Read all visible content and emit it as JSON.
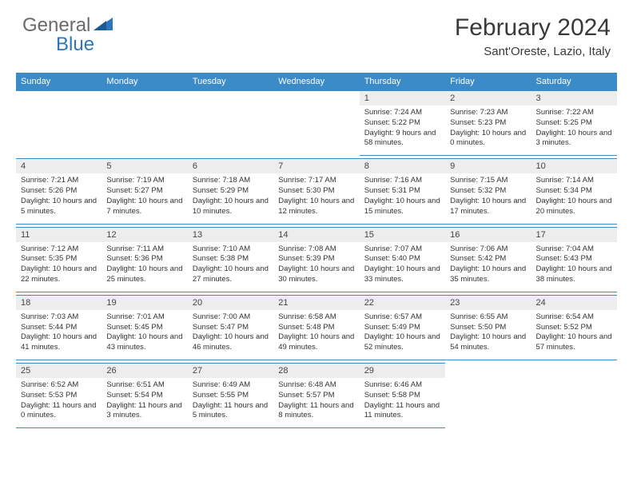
{
  "logo": {
    "text1": "General",
    "text2": "Blue"
  },
  "title": "February 2024",
  "location": "Sant'Oreste, Lazio, Italy",
  "colors": {
    "header_bg": "#3b8bc8",
    "header_text": "#ffffff",
    "daynum_bg": "#ededed",
    "border": "#3b8bc8",
    "logo_gray": "#6a6a6a",
    "logo_blue": "#2d76ba"
  },
  "weekdays": [
    "Sunday",
    "Monday",
    "Tuesday",
    "Wednesday",
    "Thursday",
    "Friday",
    "Saturday"
  ],
  "weeks": [
    [
      null,
      null,
      null,
      null,
      {
        "n": "1",
        "sunrise": "7:24 AM",
        "sunset": "5:22 PM",
        "daylight": "9 hours and 58 minutes."
      },
      {
        "n": "2",
        "sunrise": "7:23 AM",
        "sunset": "5:23 PM",
        "daylight": "10 hours and 0 minutes."
      },
      {
        "n": "3",
        "sunrise": "7:22 AM",
        "sunset": "5:25 PM",
        "daylight": "10 hours and 3 minutes."
      }
    ],
    [
      {
        "n": "4",
        "sunrise": "7:21 AM",
        "sunset": "5:26 PM",
        "daylight": "10 hours and 5 minutes."
      },
      {
        "n": "5",
        "sunrise": "7:19 AM",
        "sunset": "5:27 PM",
        "daylight": "10 hours and 7 minutes."
      },
      {
        "n": "6",
        "sunrise": "7:18 AM",
        "sunset": "5:29 PM",
        "daylight": "10 hours and 10 minutes."
      },
      {
        "n": "7",
        "sunrise": "7:17 AM",
        "sunset": "5:30 PM",
        "daylight": "10 hours and 12 minutes."
      },
      {
        "n": "8",
        "sunrise": "7:16 AM",
        "sunset": "5:31 PM",
        "daylight": "10 hours and 15 minutes."
      },
      {
        "n": "9",
        "sunrise": "7:15 AM",
        "sunset": "5:32 PM",
        "daylight": "10 hours and 17 minutes."
      },
      {
        "n": "10",
        "sunrise": "7:14 AM",
        "sunset": "5:34 PM",
        "daylight": "10 hours and 20 minutes."
      }
    ],
    [
      {
        "n": "11",
        "sunrise": "7:12 AM",
        "sunset": "5:35 PM",
        "daylight": "10 hours and 22 minutes."
      },
      {
        "n": "12",
        "sunrise": "7:11 AM",
        "sunset": "5:36 PM",
        "daylight": "10 hours and 25 minutes."
      },
      {
        "n": "13",
        "sunrise": "7:10 AM",
        "sunset": "5:38 PM",
        "daylight": "10 hours and 27 minutes."
      },
      {
        "n": "14",
        "sunrise": "7:08 AM",
        "sunset": "5:39 PM",
        "daylight": "10 hours and 30 minutes."
      },
      {
        "n": "15",
        "sunrise": "7:07 AM",
        "sunset": "5:40 PM",
        "daylight": "10 hours and 33 minutes."
      },
      {
        "n": "16",
        "sunrise": "7:06 AM",
        "sunset": "5:42 PM",
        "daylight": "10 hours and 35 minutes."
      },
      {
        "n": "17",
        "sunrise": "7:04 AM",
        "sunset": "5:43 PM",
        "daylight": "10 hours and 38 minutes."
      }
    ],
    [
      {
        "n": "18",
        "sunrise": "7:03 AM",
        "sunset": "5:44 PM",
        "daylight": "10 hours and 41 minutes."
      },
      {
        "n": "19",
        "sunrise": "7:01 AM",
        "sunset": "5:45 PM",
        "daylight": "10 hours and 43 minutes."
      },
      {
        "n": "20",
        "sunrise": "7:00 AM",
        "sunset": "5:47 PM",
        "daylight": "10 hours and 46 minutes."
      },
      {
        "n": "21",
        "sunrise": "6:58 AM",
        "sunset": "5:48 PM",
        "daylight": "10 hours and 49 minutes."
      },
      {
        "n": "22",
        "sunrise": "6:57 AM",
        "sunset": "5:49 PM",
        "daylight": "10 hours and 52 minutes."
      },
      {
        "n": "23",
        "sunrise": "6:55 AM",
        "sunset": "5:50 PM",
        "daylight": "10 hours and 54 minutes."
      },
      {
        "n": "24",
        "sunrise": "6:54 AM",
        "sunset": "5:52 PM",
        "daylight": "10 hours and 57 minutes."
      }
    ],
    [
      {
        "n": "25",
        "sunrise": "6:52 AM",
        "sunset": "5:53 PM",
        "daylight": "11 hours and 0 minutes."
      },
      {
        "n": "26",
        "sunrise": "6:51 AM",
        "sunset": "5:54 PM",
        "daylight": "11 hours and 3 minutes."
      },
      {
        "n": "27",
        "sunrise": "6:49 AM",
        "sunset": "5:55 PM",
        "daylight": "11 hours and 5 minutes."
      },
      {
        "n": "28",
        "sunrise": "6:48 AM",
        "sunset": "5:57 PM",
        "daylight": "11 hours and 8 minutes."
      },
      {
        "n": "29",
        "sunrise": "6:46 AM",
        "sunset": "5:58 PM",
        "daylight": "11 hours and 11 minutes."
      },
      null,
      null
    ]
  ],
  "labels": {
    "sunrise": "Sunrise:",
    "sunset": "Sunset:",
    "daylight": "Daylight:"
  }
}
